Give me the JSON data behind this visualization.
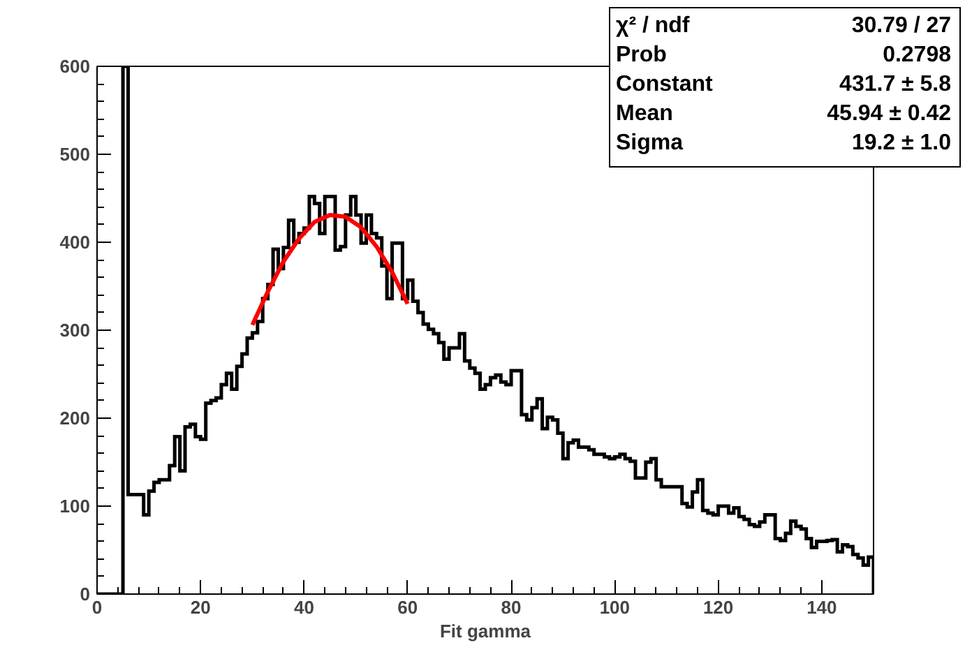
{
  "chart_data": {
    "type": "histogram",
    "xlabel": "Fit gamma",
    "bins": [
      0,
      1,
      2,
      3,
      4,
      5,
      6,
      7,
      8,
      9,
      10,
      11,
      12,
      13,
      14,
      15,
      16,
      17,
      18,
      19,
      20,
      21,
      22,
      23,
      24,
      25,
      26,
      27,
      28,
      29,
      30,
      31,
      32,
      33,
      34,
      35,
      36,
      37,
      38,
      39,
      40,
      41,
      42,
      43,
      44,
      45,
      46,
      47,
      48,
      49,
      50,
      51,
      52,
      53,
      54,
      55,
      56,
      57,
      58,
      59,
      60,
      61,
      62,
      63,
      64,
      65,
      66,
      67,
      68,
      69,
      70,
      71,
      72,
      73,
      74,
      75,
      76,
      77,
      78,
      79,
      80,
      81,
      82,
      83,
      84,
      85,
      86,
      87,
      88,
      89,
      90,
      91,
      92,
      93,
      94,
      95,
      96,
      97,
      98,
      99,
      100,
      101,
      102,
      103,
      104,
      105,
      106,
      107,
      108,
      109,
      110,
      111,
      112,
      113,
      114,
      115,
      116,
      117,
      118,
      119,
      120,
      121,
      122,
      123,
      124,
      125,
      126,
      127,
      128,
      129,
      130,
      131,
      132,
      133,
      134,
      135,
      136,
      137,
      138,
      139,
      140,
      141,
      142,
      143,
      144,
      145,
      146,
      147,
      148,
      149,
      150
    ],
    "values": [
      0,
      0,
      0,
      0,
      0,
      600,
      113,
      113,
      113,
      90,
      117,
      127,
      130,
      130,
      146,
      179,
      140,
      190,
      193,
      179,
      176,
      217,
      220,
      223,
      238,
      251,
      233,
      259,
      273,
      291,
      297,
      310,
      336,
      352,
      392,
      370,
      394,
      425,
      400,
      410,
      416,
      452,
      444,
      410,
      452,
      452,
      391,
      395,
      431,
      452,
      431,
      399,
      431,
      410,
      405,
      373,
      336,
      399,
      399,
      336,
      357,
      333,
      320,
      307,
      301,
      296,
      286,
      267,
      280,
      280,
      296,
      265,
      257,
      251,
      233,
      238,
      246,
      249,
      241,
      238,
      254,
      254,
      204,
      198,
      212,
      222,
      188,
      201,
      198,
      183,
      154,
      172,
      175,
      167,
      167,
      164,
      159,
      159,
      156,
      154,
      156,
      159,
      154,
      151,
      132,
      132,
      150,
      154,
      130,
      122,
      122,
      122,
      122,
      103,
      99,
      116,
      130,
      95,
      92,
      90,
      100,
      100,
      92,
      98,
      88,
      85,
      79,
      77,
      82,
      90,
      90,
      63,
      61,
      69,
      83,
      77,
      74,
      63,
      53,
      60,
      60,
      61,
      62,
      48,
      56,
      54,
      45,
      41,
      33,
      42
    ],
    "color": "#000000",
    "series": [
      {
        "type": "line",
        "color": "#ff0000",
        "x": [
          30,
          33,
          36,
          39,
          42,
          45,
          48,
          51,
          54,
          57,
          60
        ],
        "values": [
          306,
          344,
          378,
          404,
          423,
          431,
          429,
          417,
          395,
          366,
          330
        ]
      }
    ],
    "xlim": [
      0,
      150
    ],
    "ylim": [
      0,
      600
    ],
    "xticks": [
      0,
      20,
      40,
      60,
      80,
      100,
      120,
      140
    ],
    "yticks": [
      0,
      100,
      200,
      300,
      400,
      500,
      600
    ],
    "grid": false,
    "annotations": [
      "χ² / ndf",
      "30.79 / 27",
      "Prob",
      "0.2798",
      "Constant",
      "431.7 ± 5.8",
      "Mean",
      "45.94 ± 0.42",
      "Sigma",
      "19.2 ± 1.0"
    ]
  }
}
